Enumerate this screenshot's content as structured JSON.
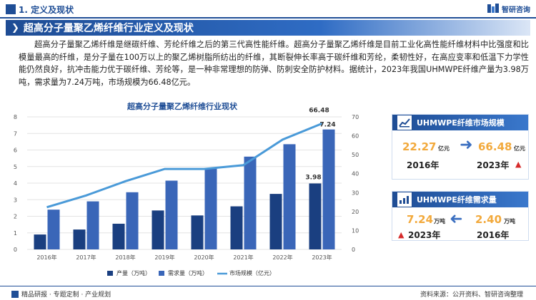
{
  "header": {
    "section": "1. 定义及现状",
    "brand": "智研咨询"
  },
  "banner": {
    "title": "超高分子量聚乙烯纤维行业定义及现状"
  },
  "paragraph": "超高分子量聚乙烯纤维是继碳纤维、芳纶纤维之后的第三代高性能纤维。超高分子量聚乙烯纤维是目前工业化高性能纤维材料中比强度和比模量最高的纤维，是分子量在100万以上的聚乙烯树脂所纺出的纤维，其断裂伸长率高于碳纤维和芳纶，柔韧性好，在高应变率和低温下力学性能仍然良好，抗冲击能力优于碳纤维、芳纶等，是一种非常理想的防弹、防刺安全防护材料。据统计，2023年我国UHMWPE纤维产量为3.98万吨，需求量为7.24万吨，市场规模为66.48亿元。",
  "chart_data": {
    "type": "bar",
    "title": "超高分子量聚乙烯纤维行业现状",
    "categories": [
      "2016年",
      "2017年",
      "2018年",
      "2019年",
      "2020年",
      "2021年",
      "2022年",
      "2023年"
    ],
    "series": [
      {
        "name": "产量（万吨）",
        "type": "bar",
        "axis": "left",
        "values": [
          0.9,
          1.2,
          1.55,
          2.35,
          2.05,
          2.6,
          3.35,
          3.98
        ]
      },
      {
        "name": "需求量（万吨）",
        "type": "bar",
        "axis": "left",
        "values": [
          2.4,
          2.9,
          3.45,
          4.15,
          4.9,
          5.6,
          6.35,
          7.24
        ]
      },
      {
        "name": "市场规模（亿元）",
        "type": "line",
        "axis": "right",
        "values": [
          22.27,
          28.5,
          36.0,
          42.5,
          42.5,
          44.5,
          58.0,
          66.48
        ]
      }
    ],
    "data_labels": {
      "production_last": "3.98",
      "demand_last": "7.24",
      "market_last": "66.48"
    },
    "ylim_left": [
      0,
      8
    ],
    "yticks_left": [
      "0",
      "1",
      "2",
      "3",
      "4",
      "5",
      "6",
      "7",
      "8"
    ],
    "ylim_right": [
      0,
      70
    ],
    "yticks_right": [
      "0",
      "10",
      "20",
      "30",
      "40",
      "50",
      "60",
      "70"
    ],
    "grid": true,
    "legend_position": "bottom",
    "colors": {
      "production": "#1a3f80",
      "demand": "#3a66b8",
      "market": "#4a9ad8"
    }
  },
  "cards": {
    "market": {
      "title": "UHMWPE纤维市场规模",
      "from_value": "22.27",
      "from_unit": "亿元",
      "from_year": "2016年",
      "to_value": "66.48",
      "to_unit": "亿元",
      "to_year": "2023年"
    },
    "demand": {
      "title": "UHMWPE纤维需求量",
      "left_value": "7.24",
      "left_unit": "万吨",
      "left_year": "2023年",
      "right_value": "2.40",
      "right_unit": "万吨",
      "right_year": "2016年"
    }
  },
  "footer": {
    "left": "精品研报 · 专题定制 · 产业规划",
    "right": "资料来源：公开资料、智研咨询整理"
  }
}
